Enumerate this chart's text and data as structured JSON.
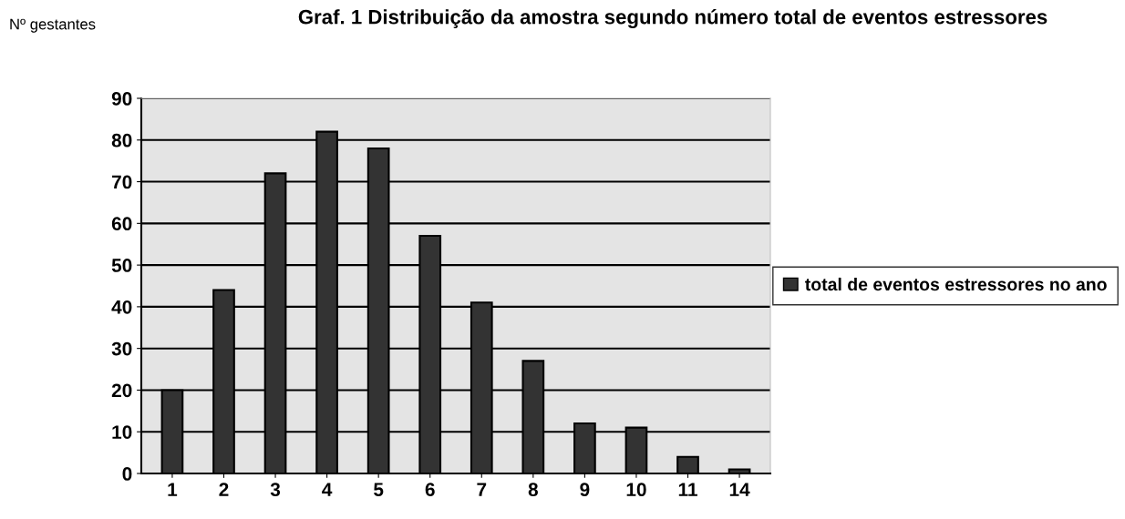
{
  "chart_data": {
    "type": "bar",
    "title": "Graf. 1 Distribuição da amostra segundo número total de eventos estressores",
    "ylabel": "Nº gestantes",
    "categories": [
      "1",
      "2",
      "3",
      "4",
      "5",
      "6",
      "7",
      "8",
      "9",
      "10",
      "11",
      "14"
    ],
    "series": [
      {
        "name": "total de eventos estressores no ano",
        "color": "#333333",
        "values": [
          20,
          44,
          72,
          82,
          78,
          57,
          41,
          27,
          12,
          11,
          4,
          1
        ]
      }
    ],
    "ylim": [
      0,
      90
    ],
    "yticks": [
      0,
      10,
      20,
      30,
      40,
      50,
      60,
      70,
      80,
      90
    ],
    "grid": "y",
    "legend": "right"
  }
}
